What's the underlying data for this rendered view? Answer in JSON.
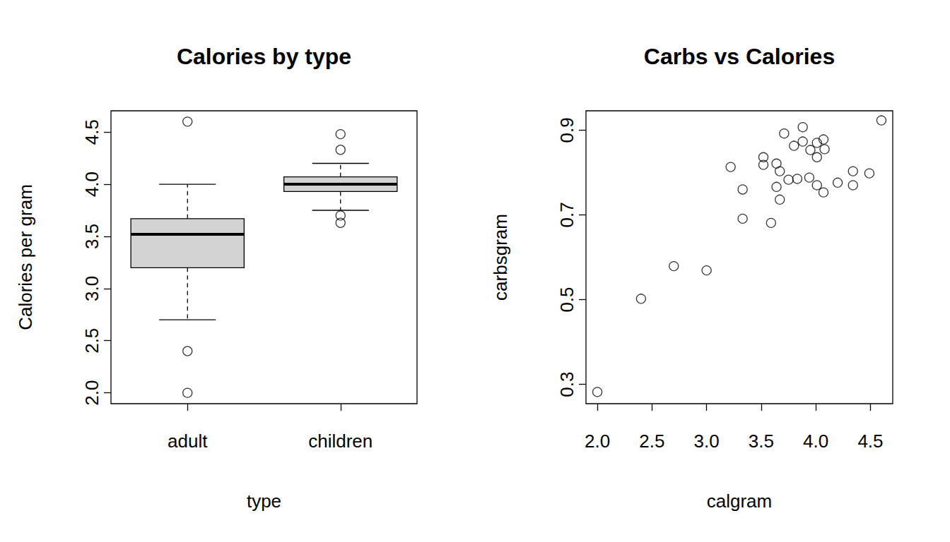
{
  "chart_data": [
    {
      "type": "boxplot",
      "title": "Calories by type",
      "x_label": "type",
      "y_label": "Calories per gram",
      "categories": [
        "adult",
        "children"
      ],
      "values": [
        [
          2.7,
          3.2,
          3.52,
          3.67,
          4.0
        ],
        [
          3.75,
          3.93,
          4.0,
          4.07,
          4.2
        ]
      ],
      "outliers": [
        [
          4.6,
          2.4,
          2.0
        ],
        [
          4.48,
          4.33,
          3.7,
          3.63
        ]
      ],
      "color": "#d3d3d3",
      "marker": "open_circle",
      "ylim": [
        1.896,
        4.704
      ],
      "yticks": [
        {
          "value": 2,
          "label": "2.0"
        },
        2.5,
        {
          "value": 3,
          "label": "3.0"
        },
        3.5,
        {
          "value": 4,
          "label": "4.0"
        },
        4.5
      ],
      "grid": false
    },
    {
      "type": "scatter",
      "title": "Carbs vs Calories",
      "x_label": "calgram",
      "y_label": "carbsgram",
      "x": [
        2.0,
        2.4,
        2.7,
        3.0,
        3.22,
        3.33,
        3.33,
        3.52,
        3.52,
        3.59,
        3.64,
        3.64,
        3.67,
        3.67,
        3.71,
        3.75,
        3.8,
        3.83,
        3.88,
        3.88,
        3.94,
        3.95,
        4.01,
        4.01,
        4.01,
        4.07,
        4.07,
        4.08,
        4.2,
        4.34,
        4.34,
        4.49,
        4.6
      ],
      "values": [
        0.282,
        0.502,
        0.579,
        0.569,
        0.813,
        0.76,
        0.691,
        0.836,
        0.818,
        0.681,
        0.821,
        0.766,
        0.803,
        0.736,
        0.892,
        0.783,
        0.863,
        0.785,
        0.907,
        0.873,
        0.788,
        0.853,
        0.87,
        0.836,
        0.77,
        0.878,
        0.753,
        0.855,
        0.776,
        0.803,
        0.77,
        0.798,
        0.923
      ],
      "color": "#000000",
      "marker": "open_circle",
      "xlim": [
        1.896,
        4.704
      ],
      "xticks": [
        {
          "value": 2,
          "label": "2.0"
        },
        2.5,
        {
          "value": 3,
          "label": "3.0"
        },
        3.5,
        {
          "value": 4,
          "label": "4.0"
        },
        4.5
      ],
      "ylim": [
        0.2544,
        0.9456
      ],
      "yticks": [
        0.3,
        0.5,
        0.7,
        0.9
      ],
      "grid": false
    }
  ]
}
